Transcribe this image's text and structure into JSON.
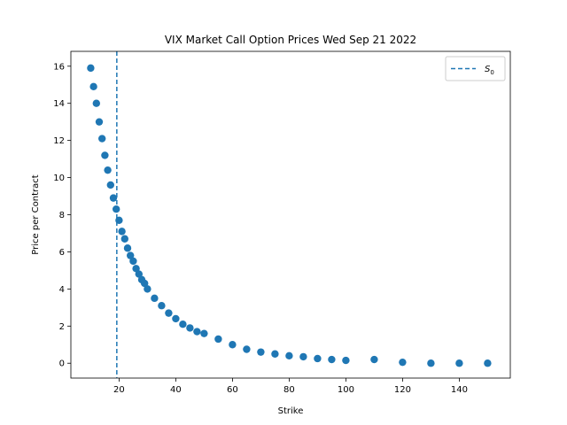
{
  "chart_data": {
    "type": "scatter",
    "title": "VIX Market Call Option Prices Wed Sep 21 2022",
    "xlabel": "Strike",
    "ylabel": "Price per Contract",
    "xlim": [
      3,
      158
    ],
    "ylim": [
      -0.8,
      16.8
    ],
    "xticks": [
      20,
      40,
      60,
      80,
      100,
      120,
      140
    ],
    "yticks": [
      0,
      2,
      4,
      6,
      8,
      10,
      12,
      14,
      16
    ],
    "grid": false,
    "legend": {
      "placement": "top-right",
      "entries": [
        {
          "label": "S",
          "subscript": "0",
          "style": "dashed-line"
        }
      ]
    },
    "vline": {
      "x": 19.2,
      "label": "S0"
    },
    "color": "#1f77b4",
    "series": [
      {
        "x": [
          10,
          11,
          12,
          13,
          14,
          15,
          16,
          17,
          18,
          19,
          20,
          21,
          22,
          23,
          24,
          25,
          26,
          27,
          28,
          29,
          30,
          32.5,
          35,
          37.5,
          40,
          42.5,
          45,
          47.5,
          50,
          55,
          60,
          65,
          70,
          75,
          80,
          85,
          90,
          95,
          100,
          110,
          120,
          130,
          140,
          150
        ],
        "y": [
          15.9,
          14.9,
          14.0,
          13.0,
          12.1,
          11.2,
          10.4,
          9.6,
          8.9,
          8.3,
          7.7,
          7.1,
          6.7,
          6.2,
          5.8,
          5.5,
          5.1,
          4.8,
          4.5,
          4.3,
          4.0,
          3.5,
          3.1,
          2.7,
          2.4,
          2.1,
          1.9,
          1.7,
          1.6,
          1.3,
          1.0,
          0.75,
          0.6,
          0.5,
          0.4,
          0.35,
          0.25,
          0.2,
          0.15,
          0.2,
          0.05,
          0.0,
          0.0,
          0.0
        ]
      }
    ]
  }
}
